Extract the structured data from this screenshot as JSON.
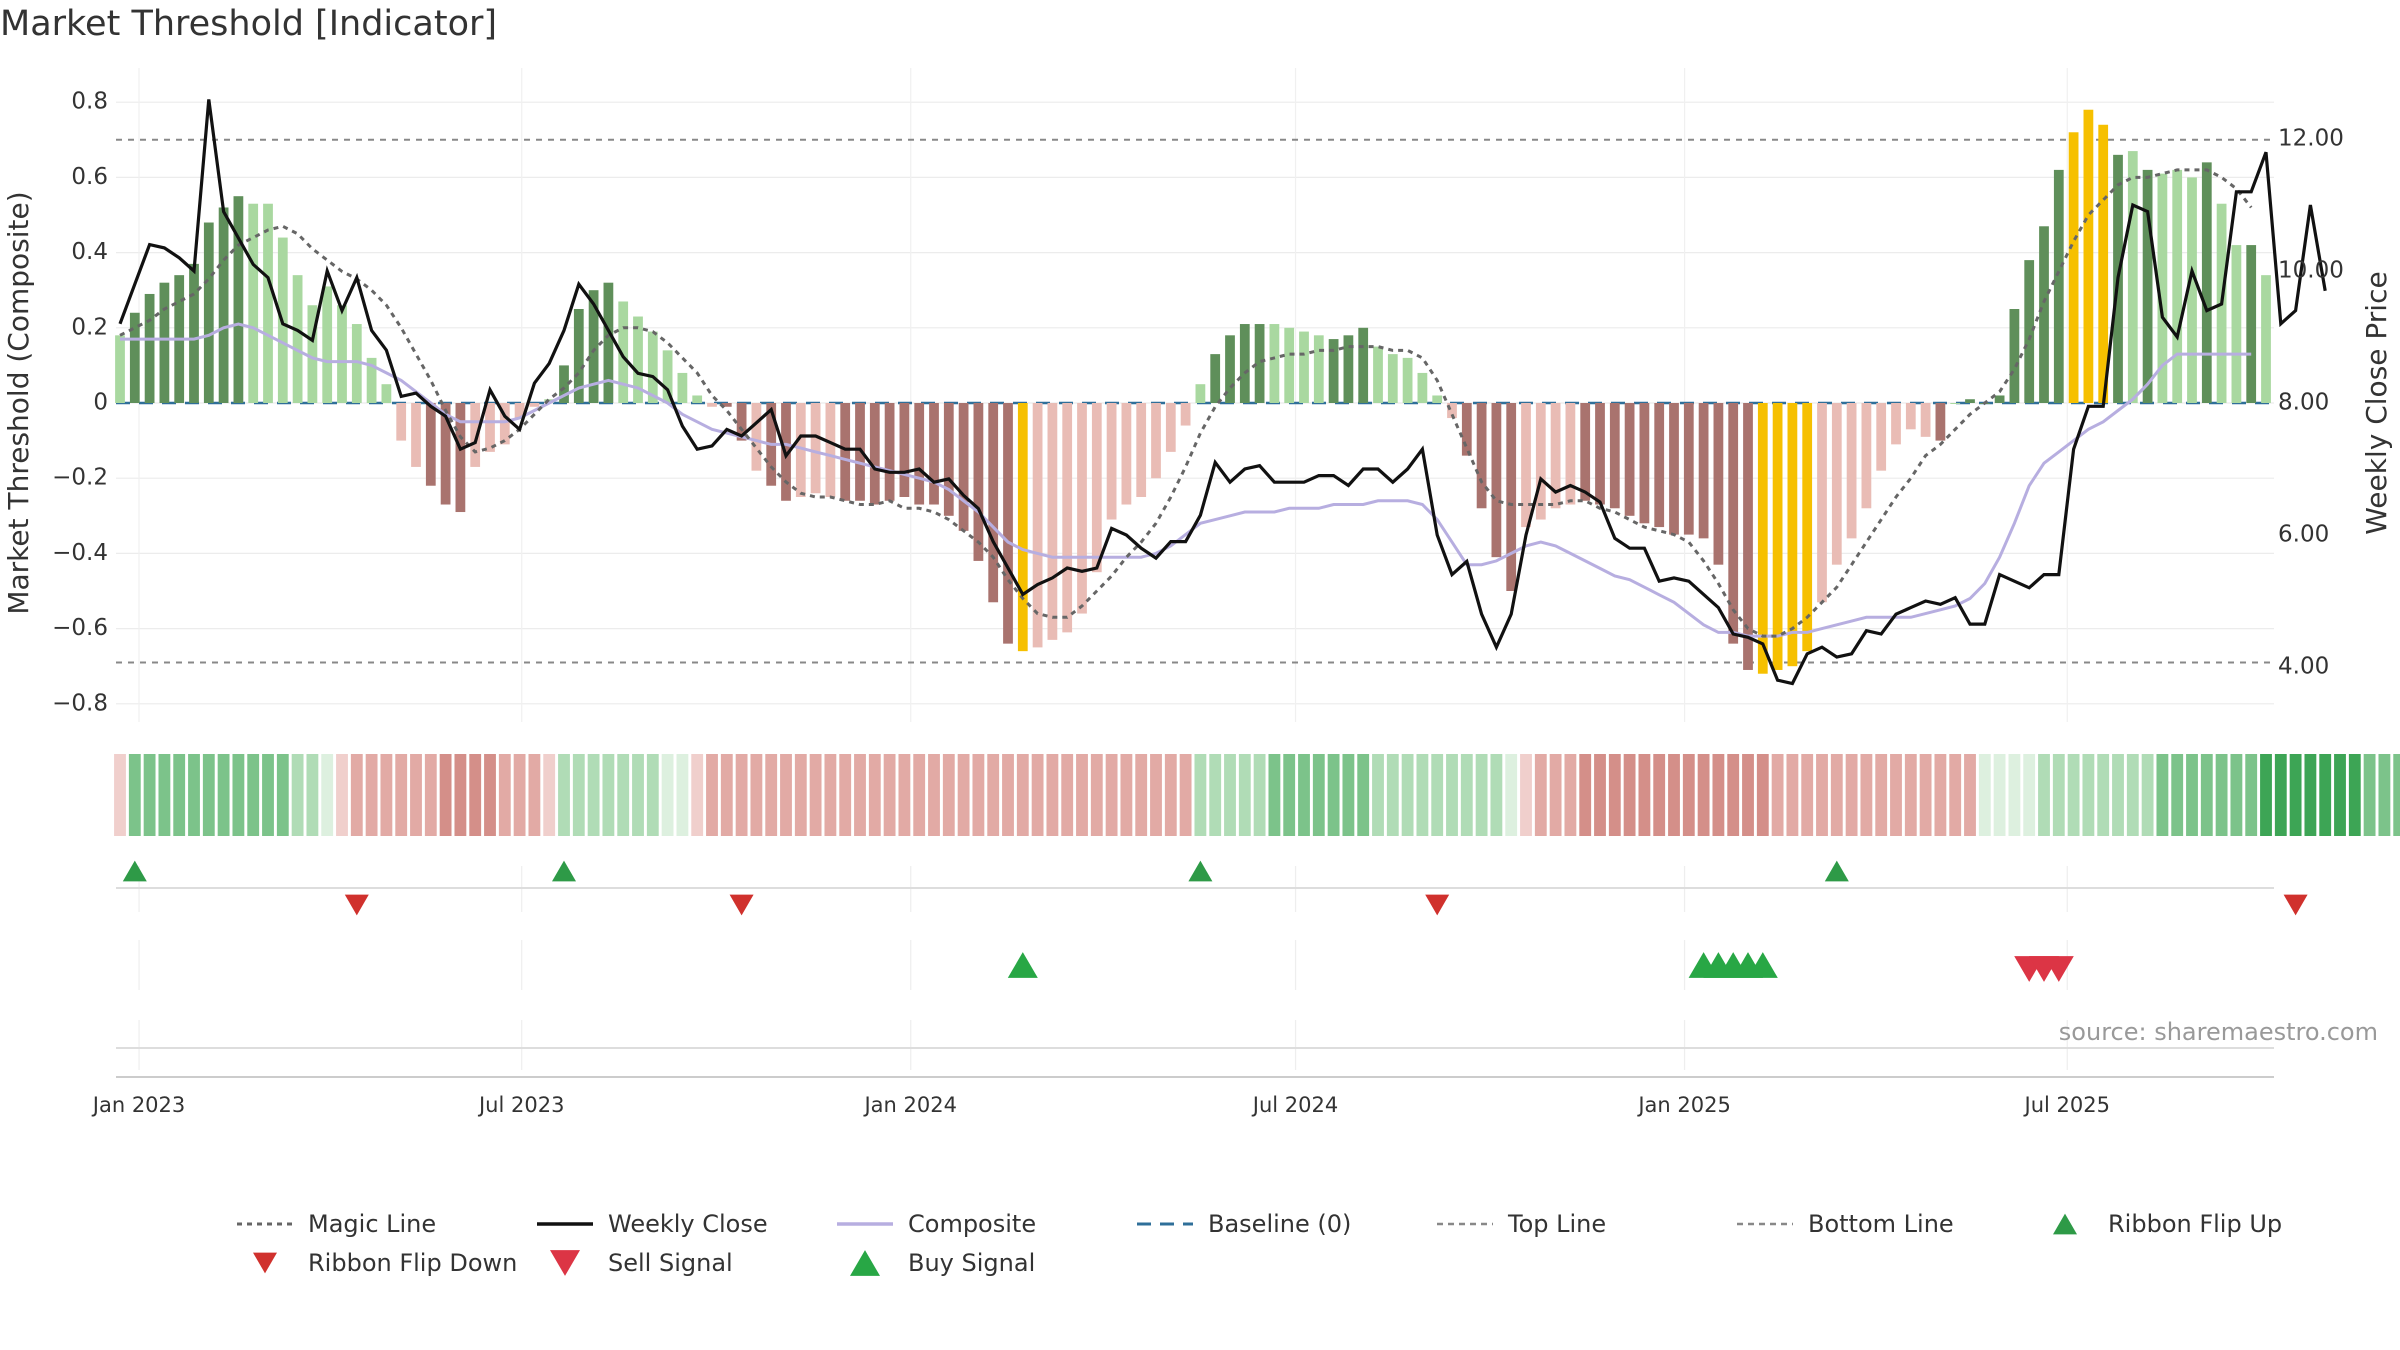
{
  "title": "Market Threshold [Indicator]",
  "source": "source: sharemaestro.com",
  "colors": {
    "up_dark": "#5f8f5a",
    "up_light": "#a9d8a0",
    "down_dark": "#a9736e",
    "down_light": "#e9bcb5",
    "extreme": "#f6c000",
    "magic": "#666666",
    "close": "#111111",
    "composite": "#b7aee0",
    "baseline": "#2f6f99",
    "threshold": "#888888",
    "buy": "#28a745",
    "sell": "#dc3545",
    "flip_up": "#2e9a47",
    "flip_down": "#d0312d"
  },
  "chart_data": {
    "type": "bar",
    "start_date": "2022-12-23",
    "interval_days": 7,
    "y_left": {
      "label": "Market Threshold (Composite)",
      "ticks": [
        0.8,
        0.6,
        0.4,
        0.2,
        0,
        -0.2,
        -0.4,
        -0.6,
        -0.8
      ],
      "tick_labels": [
        "0.8",
        "0.6",
        "0.4",
        "0.2",
        "0",
        "−0.2",
        "−0.4",
        "−0.6",
        "−0.8"
      ]
    },
    "y_right": {
      "label": "Weekly Close Price",
      "ticks": [
        12,
        10,
        8,
        6,
        4
      ],
      "tick_labels": [
        "12.00",
        "10.00",
        "8.00",
        "6.00",
        "4.00"
      ]
    },
    "x_ticks": [
      {
        "label": "Jan 2023",
        "date": "2023-01-01"
      },
      {
        "label": "Jul 2023",
        "date": "2023-07-01"
      },
      {
        "label": "Jan 2024",
        "date": "2024-01-01"
      },
      {
        "label": "Jul 2024",
        "date": "2024-07-01"
      },
      {
        "label": "Jan 2025",
        "date": "2025-01-01"
      },
      {
        "label": "Jul 2025",
        "date": "2025-07-01"
      }
    ],
    "top_line": 0.7,
    "bottom_line": -0.69,
    "baseline": 0,
    "bars": [
      0.18,
      0.24,
      0.29,
      0.32,
      0.34,
      0.37,
      0.48,
      0.52,
      0.55,
      0.53,
      0.53,
      0.44,
      0.34,
      0.26,
      0.31,
      0.26,
      0.21,
      0.12,
      0.05,
      -0.1,
      -0.17,
      -0.22,
      -0.27,
      -0.29,
      -0.17,
      -0.13,
      -0.11,
      -0.04,
      -0.01,
      0.01,
      0.1,
      0.25,
      0.3,
      0.32,
      0.27,
      0.23,
      0.19,
      0.14,
      0.08,
      0.02,
      -0.01,
      -0.01,
      -0.1,
      -0.18,
      -0.22,
      -0.26,
      -0.25,
      -0.24,
      -0.25,
      -0.26,
      -0.26,
      -0.27,
      -0.26,
      -0.25,
      -0.27,
      -0.27,
      -0.3,
      -0.34,
      -0.42,
      -0.53,
      -0.64,
      -0.66,
      -0.65,
      -0.63,
      -0.61,
      -0.56,
      -0.45,
      -0.31,
      -0.27,
      -0.25,
      -0.2,
      -0.13,
      -0.06,
      0.05,
      0.13,
      0.18,
      0.21,
      0.21,
      0.21,
      0.2,
      0.19,
      0.18,
      0.17,
      0.18,
      0.2,
      0.15,
      0.13,
      0.12,
      0.08,
      0.02,
      -0.04,
      -0.14,
      -0.28,
      -0.41,
      -0.5,
      -0.33,
      -0.31,
      -0.28,
      -0.27,
      -0.26,
      -0.27,
      -0.28,
      -0.3,
      -0.32,
      -0.33,
      -0.35,
      -0.35,
      -0.36,
      -0.43,
      -0.64,
      -0.71,
      -0.72,
      -0.71,
      -0.7,
      -0.66,
      -0.53,
      -0.43,
      -0.36,
      -0.28,
      -0.18,
      -0.11,
      -0.07,
      -0.09,
      -0.1,
      0.0,
      0.01,
      0.0,
      0.02,
      0.25,
      0.38,
      0.47,
      0.62,
      0.72,
      0.78,
      0.74,
      0.66,
      0.67,
      0.62,
      0.61,
      0.62,
      0.6,
      0.64,
      0.53,
      0.42,
      0.42,
      0.34
    ],
    "bar_kind": [
      "ul",
      "ud",
      "ud",
      "ud",
      "ud",
      "ud",
      "ud",
      "ud",
      "ud",
      "ul",
      "ul",
      "ul",
      "ul",
      "ul",
      "ul",
      "ul",
      "ul",
      "ul",
      "ul",
      "dl",
      "dl",
      "dd",
      "dd",
      "dd",
      "dl",
      "dl",
      "dl",
      "dl",
      "dl",
      "ul",
      "ud",
      "ud",
      "ud",
      "ud",
      "ul",
      "ul",
      "ul",
      "ul",
      "ul",
      "ul",
      "dl",
      "dd",
      "dd",
      "dl",
      "dd",
      "dd",
      "dl",
      "dl",
      "dl",
      "dd",
      "dd",
      "dd",
      "dd",
      "dd",
      "dd",
      "dd",
      "dd",
      "dd",
      "dd",
      "dd",
      "dd",
      "ex",
      "dl",
      "dl",
      "dl",
      "dl",
      "dl",
      "dl",
      "dl",
      "dl",
      "dl",
      "dl",
      "dl",
      "ul",
      "ud",
      "ud",
      "ud",
      "ud",
      "ul",
      "ul",
      "ul",
      "ul",
      "ud",
      "ud",
      "ud",
      "ul",
      "ul",
      "ul",
      "ul",
      "ul",
      "dl",
      "dd",
      "dd",
      "dd",
      "dd",
      "dl",
      "dl",
      "dl",
      "dl",
      "dd",
      "dd",
      "dd",
      "dd",
      "dd",
      "dd",
      "dd",
      "dd",
      "dd",
      "dd",
      "dd",
      "dd",
      "ex",
      "ex",
      "ex",
      "ex",
      "dl",
      "dl",
      "dl",
      "dl",
      "dl",
      "dl",
      "dl",
      "dl",
      "dd",
      "ul",
      "ud",
      "ud",
      "ud",
      "ud",
      "ud",
      "ud",
      "ud",
      "ex",
      "ex",
      "ex",
      "ud",
      "ul",
      "ud",
      "ul",
      "ul",
      "ul",
      "ud",
      "ul",
      "ul",
      "ud",
      "ul"
    ],
    "series": [
      {
        "name": "Magic Line",
        "values": [
          0.18,
          0.2,
          0.22,
          0.25,
          0.27,
          0.29,
          0.33,
          0.38,
          0.42,
          0.44,
          0.46,
          0.47,
          0.45,
          0.41,
          0.38,
          0.35,
          0.33,
          0.3,
          0.26,
          0.2,
          0.13,
          0.06,
          -0.02,
          -0.09,
          -0.13,
          -0.12,
          -0.1,
          -0.07,
          -0.03,
          0.01,
          0.04,
          0.08,
          0.14,
          0.18,
          0.2,
          0.2,
          0.19,
          0.16,
          0.12,
          0.08,
          0.02,
          -0.02,
          -0.07,
          -0.12,
          -0.17,
          -0.21,
          -0.24,
          -0.25,
          -0.25,
          -0.26,
          -0.27,
          -0.27,
          -0.26,
          -0.28,
          -0.28,
          -0.29,
          -0.31,
          -0.34,
          -0.37,
          -0.41,
          -0.47,
          -0.52,
          -0.56,
          -0.57,
          -0.57,
          -0.54,
          -0.5,
          -0.46,
          -0.41,
          -0.37,
          -0.32,
          -0.25,
          -0.17,
          -0.08,
          -0.01,
          0.04,
          0.08,
          0.11,
          0.12,
          0.13,
          0.13,
          0.14,
          0.14,
          0.15,
          0.15,
          0.15,
          0.14,
          0.14,
          0.12,
          0.06,
          -0.03,
          -0.12,
          -0.21,
          -0.26,
          -0.27,
          -0.27,
          -0.27,
          -0.27,
          -0.26,
          -0.26,
          -0.28,
          -0.29,
          -0.31,
          -0.33,
          -0.34,
          -0.35,
          -0.37,
          -0.42,
          -0.48,
          -0.55,
          -0.6,
          -0.62,
          -0.62,
          -0.6,
          -0.57,
          -0.53,
          -0.49,
          -0.43,
          -0.37,
          -0.31,
          -0.25,
          -0.2,
          -0.14,
          -0.11,
          -0.07,
          -0.03,
          0.0,
          0.03,
          0.09,
          0.17,
          0.27,
          0.35,
          0.43,
          0.5,
          0.54,
          0.58,
          0.6,
          0.6,
          0.61,
          0.62,
          0.62,
          0.62,
          0.6,
          0.57,
          0.52
        ]
      },
      {
        "name": "Weekly Close",
        "values": [
          9.2,
          9.8,
          10.4,
          10.35,
          10.2,
          10.0,
          12.6,
          10.9,
          10.5,
          10.1,
          9.9,
          9.2,
          9.1,
          8.95,
          10.0,
          9.4,
          9.9,
          9.1,
          8.8,
          8.1,
          8.15,
          7.95,
          7.8,
          7.3,
          7.4,
          8.2,
          7.8,
          7.6,
          8.3,
          8.6,
          9.1,
          9.8,
          9.5,
          9.1,
          8.7,
          8.45,
          8.4,
          8.2,
          7.65,
          7.3,
          7.35,
          7.6,
          7.5,
          7.7,
          7.9,
          7.2,
          7.5,
          7.5,
          7.4,
          7.3,
          7.3,
          7.0,
          6.95,
          6.95,
          7.0,
          6.8,
          6.85,
          6.6,
          6.4,
          5.9,
          5.5,
          5.1,
          5.25,
          5.35,
          5.5,
          5.45,
          5.5,
          6.1,
          6.0,
          5.8,
          5.65,
          5.9,
          5.9,
          6.3,
          7.1,
          6.8,
          7.0,
          7.05,
          6.8,
          6.8,
          6.8,
          6.9,
          6.9,
          6.75,
          7.0,
          7.0,
          6.8,
          7.0,
          7.3,
          6.0,
          5.4,
          5.6,
          4.8,
          4.3,
          4.8,
          6.0,
          6.85,
          6.65,
          6.75,
          6.65,
          6.5,
          5.95,
          5.8,
          5.8,
          5.3,
          5.35,
          5.3,
          5.1,
          4.9,
          4.5,
          4.45,
          4.35,
          3.8,
          3.75,
          4.2,
          4.3,
          4.15,
          4.2,
          4.55,
          4.5,
          4.8,
          4.9,
          5.0,
          4.95,
          5.05,
          4.65,
          4.65,
          5.4,
          5.3,
          5.2,
          5.4,
          5.4,
          7.3,
          7.95,
          7.95,
          9.9,
          11.0,
          10.9,
          9.3,
          9.0,
          10.0,
          9.4,
          9.5,
          11.2,
          11.2,
          11.8,
          9.2,
          9.4,
          11.0,
          9.7
        ]
      },
      {
        "name": "Composite",
        "values": [
          0.17,
          0.17,
          0.17,
          0.17,
          0.17,
          0.17,
          0.18,
          0.2,
          0.21,
          0.2,
          0.18,
          0.16,
          0.14,
          0.12,
          0.11,
          0.11,
          0.11,
          0.1,
          0.08,
          0.06,
          0.03,
          0.0,
          -0.03,
          -0.05,
          -0.05,
          -0.05,
          -0.05,
          -0.04,
          -0.02,
          0.0,
          0.02,
          0.04,
          0.05,
          0.06,
          0.05,
          0.04,
          0.02,
          0.0,
          -0.03,
          -0.05,
          -0.07,
          -0.08,
          -0.09,
          -0.1,
          -0.11,
          -0.11,
          -0.12,
          -0.13,
          -0.14,
          -0.15,
          -0.16,
          -0.17,
          -0.18,
          -0.19,
          -0.2,
          -0.21,
          -0.23,
          -0.26,
          -0.29,
          -0.33,
          -0.37,
          -0.39,
          -0.4,
          -0.41,
          -0.41,
          -0.41,
          -0.41,
          -0.41,
          -0.41,
          -0.41,
          -0.4,
          -0.38,
          -0.35,
          -0.32,
          -0.31,
          -0.3,
          -0.29,
          -0.29,
          -0.29,
          -0.28,
          -0.28,
          -0.28,
          -0.27,
          -0.27,
          -0.27,
          -0.26,
          -0.26,
          -0.26,
          -0.27,
          -0.31,
          -0.37,
          -0.43,
          -0.43,
          -0.42,
          -0.4,
          -0.38,
          -0.37,
          -0.38,
          -0.4,
          -0.42,
          -0.44,
          -0.46,
          -0.47,
          -0.49,
          -0.51,
          -0.53,
          -0.56,
          -0.59,
          -0.61,
          -0.61,
          -0.62,
          -0.62,
          -0.62,
          -0.61,
          -0.61,
          -0.6,
          -0.59,
          -0.58,
          -0.57,
          -0.57,
          -0.57,
          -0.57,
          -0.56,
          -0.55,
          -0.54,
          -0.52,
          -0.48,
          -0.41,
          -0.32,
          -0.22,
          -0.16,
          -0.13,
          -0.1,
          -0.07,
          -0.05,
          -0.02,
          0.01,
          0.05,
          0.1,
          0.13,
          0.13,
          0.13,
          0.13,
          0.13,
          0.13
        ]
      },
      {
        "name": "Baseline (0)"
      },
      {
        "name": "Top Line"
      },
      {
        "name": "Bottom Line"
      }
    ],
    "ribbon": [
      -1,
      2,
      2,
      2,
      2,
      2,
      2,
      2,
      2,
      2,
      2,
      2,
      1,
      1,
      0,
      -1,
      -2,
      -2,
      -2,
      -2,
      -2,
      -2,
      -3,
      -3,
      -3,
      -3,
      -2,
      -2,
      -2,
      -1,
      1,
      1,
      1,
      1,
      1,
      1,
      1,
      0,
      0,
      -1,
      -2,
      -2,
      -2,
      -2,
      -2,
      -2,
      -2,
      -2,
      -2,
      -2,
      -2,
      -2,
      -2,
      -2,
      -2,
      -2,
      -2,
      -2,
      -2,
      -2,
      -2,
      -2,
      -2,
      -2,
      -2,
      -2,
      -2,
      -2,
      -2,
      -2,
      -2,
      -2,
      -2,
      1,
      1,
      1,
      1,
      1,
      2,
      2,
      2,
      2,
      2,
      2,
      2,
      1,
      1,
      1,
      1,
      1,
      1,
      1,
      1,
      1,
      0,
      -1,
      -2,
      -2,
      -2,
      -3,
      -3,
      -3,
      -3,
      -3,
      -3,
      -3,
      -3,
      -3,
      -3,
      -3,
      -3,
      -3,
      -2,
      -2,
      -2,
      -2,
      -2,
      -2,
      -2,
      -2,
      -2,
      -2,
      -2,
      -2,
      -2,
      -2,
      0,
      0,
      0,
      0,
      1,
      1,
      1,
      1,
      1,
      1,
      1,
      1,
      2,
      2,
      2,
      2,
      2,
      2,
      2,
      3,
      3,
      3,
      3,
      3,
      3,
      3,
      2,
      2,
      2,
      2,
      2,
      2,
      1,
      -1
    ],
    "ribbon_flip_up": [
      "2022-12-30",
      "2023-07-21",
      "2024-05-17",
      "2025-03-14"
    ],
    "ribbon_flip_down": [
      "2023-04-14",
      "2023-10-13",
      "2024-09-06",
      "2025-10-17"
    ],
    "buy_signals": [
      "2024-02-23",
      "2025-01-10",
      "2025-01-17",
      "2025-01-24",
      "2025-01-31",
      "2025-02-07"
    ],
    "sell_signals": [
      "2025-06-13",
      "2025-06-20",
      "2025-06-27"
    ],
    "legend": [
      "Magic Line",
      "Weekly Close",
      "Composite",
      "Baseline (0)",
      "Top Line",
      "Bottom Line",
      "Ribbon Flip Up",
      "Ribbon Flip Down",
      "Sell Signal",
      "Buy Signal"
    ],
    "legend_placement": "bottom",
    "grid": true
  }
}
